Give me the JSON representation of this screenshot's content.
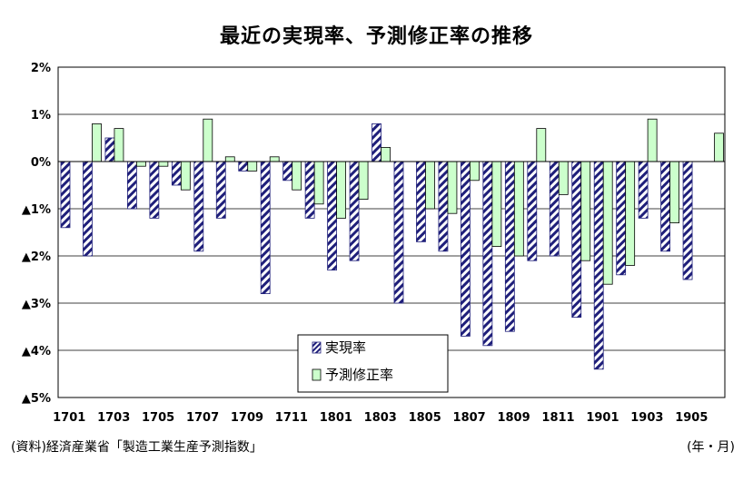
{
  "title": "最近の実現率、予測修正率の推移",
  "source": "(資料)経済産業省「製造工業生産予測指数」",
  "unit": "(年・月)",
  "chart_data": {
    "type": "bar",
    "title": "最近の実現率、予測修正率の推移",
    "ylim": [
      -5,
      2
    ],
    "y_ticks": [
      2,
      1,
      0,
      -1,
      -2,
      -3,
      -4,
      -5
    ],
    "y_tick_labels": [
      "2%",
      "1%",
      "0%",
      "▲1%",
      "▲2%",
      "▲3%",
      "▲4%",
      "▲5%"
    ],
    "x_tick_labels": [
      "1701",
      "1703",
      "1705",
      "1707",
      "1709",
      "1711",
      "1801",
      "1803",
      "1805",
      "1807",
      "1809",
      "1811",
      "1901",
      "1903",
      "1905"
    ],
    "categories": [
      "1701",
      "1702",
      "1703",
      "1704",
      "1705",
      "1706",
      "1707",
      "1708",
      "1709",
      "1710",
      "1711",
      "1712",
      "1801",
      "1802",
      "1803",
      "1804",
      "1805",
      "1806",
      "1807",
      "1808",
      "1809",
      "1810",
      "1811",
      "1812",
      "1901",
      "1902",
      "1903",
      "1904",
      "1905",
      "1906"
    ],
    "series": [
      {
        "name": "実現率",
        "color": "#1f1f7a",
        "pattern": "diagonal-hatch",
        "values": [
          -1.4,
          -2.0,
          0.5,
          -1.0,
          -1.2,
          -0.5,
          -1.9,
          -1.2,
          -0.2,
          -2.8,
          -0.4,
          -1.2,
          -2.3,
          -2.1,
          0.8,
          -3.0,
          -1.7,
          -1.9,
          -3.7,
          -3.9,
          -3.6,
          -2.1,
          -2.0,
          -3.3,
          -4.4,
          -2.4,
          -1.2,
          -1.9,
          -2.5,
          null
        ]
      },
      {
        "name": "予測修正率",
        "color": "#ccffcc",
        "values": [
          null,
          0.8,
          0.7,
          -0.1,
          -0.1,
          -0.6,
          0.9,
          0.1,
          -0.2,
          0.1,
          -0.6,
          -0.9,
          -1.2,
          -0.8,
          0.3,
          null,
          -1.0,
          -1.1,
          -0.4,
          -1.8,
          -2.0,
          0.7,
          -0.7,
          -2.1,
          -2.6,
          -2.2,
          0.9,
          -1.3,
          null,
          0.6
        ]
      }
    ],
    "grid": true,
    "legend_position": "bottom-center"
  }
}
